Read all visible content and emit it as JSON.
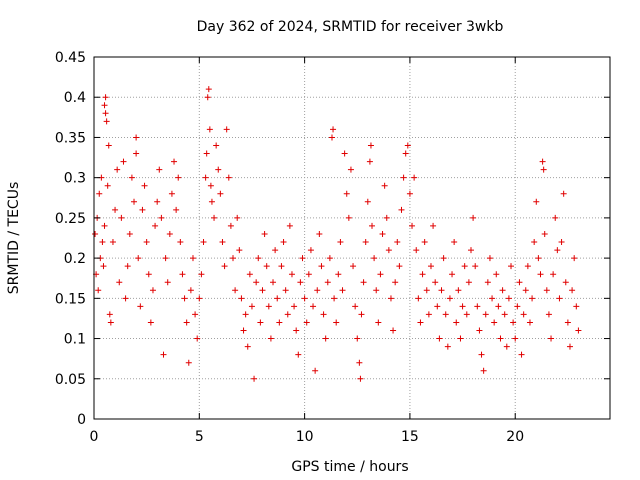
{
  "chart_data": {
    "type": "scatter",
    "title": "Day 362 of 2024, SRMTID for receiver 3wkb",
    "xlabel": "GPS time / hours",
    "ylabel": "SRMTID / TECUs",
    "xlim": [
      0,
      24.5
    ],
    "ylim": [
      0,
      0.45
    ],
    "x_ticks": [
      0,
      5,
      10,
      15,
      20
    ],
    "x_tick_labels": [
      "0",
      "5",
      "10",
      "15",
      "20"
    ],
    "y_ticks": [
      0,
      0.05,
      0.1,
      0.15,
      0.2,
      0.25,
      0.3,
      0.35,
      0.4,
      0.45
    ],
    "y_tick_labels": [
      "0",
      "0.05",
      "0.1",
      "0.15",
      "0.2",
      "0.25",
      "0.3",
      "0.35",
      "0.4",
      "0.45"
    ],
    "grid": true,
    "marker": "+",
    "colors": {
      "series": "#e00000",
      "grid": "#a0a0a0",
      "axis": "#000000"
    },
    "series": [
      {
        "name": "SRMTID",
        "points": [
          [
            0.05,
            0.23
          ],
          [
            0.1,
            0.18
          ],
          [
            0.15,
            0.25
          ],
          [
            0.2,
            0.16
          ],
          [
            0.25,
            0.28
          ],
          [
            0.3,
            0.2
          ],
          [
            0.35,
            0.3
          ],
          [
            0.4,
            0.22
          ],
          [
            0.45,
            0.19
          ],
          [
            0.5,
            0.24
          ],
          [
            0.5,
            0.39
          ],
          [
            0.55,
            0.38
          ],
          [
            0.6,
            0.37
          ],
          [
            0.55,
            0.4
          ],
          [
            0.65,
            0.29
          ],
          [
            0.7,
            0.34
          ],
          [
            0.75,
            0.13
          ],
          [
            0.8,
            0.12
          ],
          [
            0.9,
            0.22
          ],
          [
            1.0,
            0.26
          ],
          [
            1.1,
            0.31
          ],
          [
            1.2,
            0.17
          ],
          [
            1.3,
            0.25
          ],
          [
            1.4,
            0.32
          ],
          [
            1.5,
            0.15
          ],
          [
            1.6,
            0.19
          ],
          [
            1.7,
            0.23
          ],
          [
            1.8,
            0.3
          ],
          [
            1.9,
            0.27
          ],
          [
            2.0,
            0.35
          ],
          [
            2.0,
            0.33
          ],
          [
            2.1,
            0.2
          ],
          [
            2.2,
            0.14
          ],
          [
            2.3,
            0.26
          ],
          [
            2.4,
            0.29
          ],
          [
            2.5,
            0.22
          ],
          [
            2.6,
            0.18
          ],
          [
            2.7,
            0.12
          ],
          [
            2.8,
            0.16
          ],
          [
            2.9,
            0.24
          ],
          [
            3.0,
            0.27
          ],
          [
            3.1,
            0.31
          ],
          [
            3.2,
            0.25
          ],
          [
            3.3,
            0.08
          ],
          [
            3.4,
            0.2
          ],
          [
            3.5,
            0.17
          ],
          [
            3.6,
            0.23
          ],
          [
            3.7,
            0.28
          ],
          [
            3.8,
            0.32
          ],
          [
            3.9,
            0.26
          ],
          [
            4.0,
            0.3
          ],
          [
            4.1,
            0.22
          ],
          [
            4.2,
            0.18
          ],
          [
            4.3,
            0.15
          ],
          [
            4.4,
            0.12
          ],
          [
            4.5,
            0.07
          ],
          [
            4.6,
            0.16
          ],
          [
            4.7,
            0.2
          ],
          [
            4.8,
            0.13
          ],
          [
            4.9,
            0.1
          ],
          [
            5.0,
            0.15
          ],
          [
            5.1,
            0.18
          ],
          [
            5.2,
            0.22
          ],
          [
            5.3,
            0.3
          ],
          [
            5.35,
            0.33
          ],
          [
            5.4,
            0.4
          ],
          [
            5.45,
            0.41
          ],
          [
            5.5,
            0.36
          ],
          [
            5.55,
            0.29
          ],
          [
            5.6,
            0.27
          ],
          [
            5.7,
            0.25
          ],
          [
            5.8,
            0.34
          ],
          [
            5.9,
            0.31
          ],
          [
            6.0,
            0.28
          ],
          [
            6.1,
            0.22
          ],
          [
            6.2,
            0.19
          ],
          [
            6.3,
            0.36
          ],
          [
            6.4,
            0.3
          ],
          [
            6.5,
            0.24
          ],
          [
            6.6,
            0.2
          ],
          [
            6.7,
            0.16
          ],
          [
            6.8,
            0.25
          ],
          [
            6.9,
            0.21
          ],
          [
            7.0,
            0.15
          ],
          [
            7.1,
            0.11
          ],
          [
            7.2,
            0.13
          ],
          [
            7.3,
            0.09
          ],
          [
            7.4,
            0.18
          ],
          [
            7.5,
            0.14
          ],
          [
            7.6,
            0.05
          ],
          [
            7.7,
            0.17
          ],
          [
            7.8,
            0.2
          ],
          [
            7.9,
            0.12
          ],
          [
            8.0,
            0.16
          ],
          [
            8.1,
            0.23
          ],
          [
            8.2,
            0.19
          ],
          [
            8.3,
            0.14
          ],
          [
            8.4,
            0.1
          ],
          [
            8.5,
            0.17
          ],
          [
            8.6,
            0.21
          ],
          [
            8.7,
            0.15
          ],
          [
            8.8,
            0.12
          ],
          [
            8.9,
            0.19
          ],
          [
            9.0,
            0.22
          ],
          [
            9.1,
            0.16
          ],
          [
            9.2,
            0.13
          ],
          [
            9.3,
            0.24
          ],
          [
            9.4,
            0.18
          ],
          [
            9.5,
            0.14
          ],
          [
            9.6,
            0.11
          ],
          [
            9.7,
            0.08
          ],
          [
            9.8,
            0.17
          ],
          [
            9.9,
            0.2
          ],
          [
            10.0,
            0.15
          ],
          [
            10.1,
            0.12
          ],
          [
            10.2,
            0.18
          ],
          [
            10.3,
            0.21
          ],
          [
            10.4,
            0.14
          ],
          [
            10.5,
            0.06
          ],
          [
            10.6,
            0.16
          ],
          [
            10.7,
            0.23
          ],
          [
            10.8,
            0.19
          ],
          [
            10.9,
            0.13
          ],
          [
            11.0,
            0.1
          ],
          [
            11.1,
            0.17
          ],
          [
            11.2,
            0.2
          ],
          [
            11.3,
            0.35
          ],
          [
            11.35,
            0.36
          ],
          [
            11.4,
            0.15
          ],
          [
            11.5,
            0.12
          ],
          [
            11.6,
            0.18
          ],
          [
            11.7,
            0.22
          ],
          [
            11.8,
            0.16
          ],
          [
            11.9,
            0.33
          ],
          [
            12.0,
            0.28
          ],
          [
            12.1,
            0.25
          ],
          [
            12.2,
            0.31
          ],
          [
            12.3,
            0.19
          ],
          [
            12.4,
            0.14
          ],
          [
            12.5,
            0.1
          ],
          [
            12.6,
            0.07
          ],
          [
            12.65,
            0.05
          ],
          [
            12.7,
            0.13
          ],
          [
            12.8,
            0.17
          ],
          [
            12.9,
            0.22
          ],
          [
            13.0,
            0.27
          ],
          [
            13.1,
            0.32
          ],
          [
            13.15,
            0.34
          ],
          [
            13.2,
            0.24
          ],
          [
            13.3,
            0.2
          ],
          [
            13.4,
            0.16
          ],
          [
            13.5,
            0.12
          ],
          [
            13.6,
            0.18
          ],
          [
            13.7,
            0.23
          ],
          [
            13.8,
            0.29
          ],
          [
            13.9,
            0.25
          ],
          [
            14.0,
            0.21
          ],
          [
            14.1,
            0.15
          ],
          [
            14.2,
            0.11
          ],
          [
            14.3,
            0.17
          ],
          [
            14.4,
            0.22
          ],
          [
            14.5,
            0.19
          ],
          [
            14.6,
            0.26
          ],
          [
            14.7,
            0.3
          ],
          [
            14.8,
            0.33
          ],
          [
            14.9,
            0.34
          ],
          [
            15.0,
            0.28
          ],
          [
            15.1,
            0.24
          ],
          [
            15.2,
            0.3
          ],
          [
            15.3,
            0.21
          ],
          [
            15.4,
            0.15
          ],
          [
            15.5,
            0.12
          ],
          [
            15.6,
            0.18
          ],
          [
            15.7,
            0.22
          ],
          [
            15.8,
            0.16
          ],
          [
            15.9,
            0.13
          ],
          [
            16.0,
            0.19
          ],
          [
            16.1,
            0.24
          ],
          [
            16.2,
            0.17
          ],
          [
            16.3,
            0.14
          ],
          [
            16.4,
            0.1
          ],
          [
            16.5,
            0.16
          ],
          [
            16.6,
            0.2
          ],
          [
            16.7,
            0.13
          ],
          [
            16.8,
            0.09
          ],
          [
            16.9,
            0.15
          ],
          [
            17.0,
            0.18
          ],
          [
            17.1,
            0.22
          ],
          [
            17.2,
            0.12
          ],
          [
            17.3,
            0.16
          ],
          [
            17.4,
            0.1
          ],
          [
            17.5,
            0.14
          ],
          [
            17.6,
            0.19
          ],
          [
            17.7,
            0.13
          ],
          [
            17.8,
            0.17
          ],
          [
            17.9,
            0.21
          ],
          [
            18.0,
            0.25
          ],
          [
            18.1,
            0.19
          ],
          [
            18.2,
            0.14
          ],
          [
            18.3,
            0.11
          ],
          [
            18.4,
            0.08
          ],
          [
            18.5,
            0.06
          ],
          [
            18.6,
            0.13
          ],
          [
            18.7,
            0.17
          ],
          [
            18.8,
            0.2
          ],
          [
            18.9,
            0.15
          ],
          [
            19.0,
            0.12
          ],
          [
            19.1,
            0.18
          ],
          [
            19.2,
            0.14
          ],
          [
            19.3,
            0.1
          ],
          [
            19.4,
            0.16
          ],
          [
            19.5,
            0.13
          ],
          [
            19.6,
            0.09
          ],
          [
            19.7,
            0.15
          ],
          [
            19.8,
            0.19
          ],
          [
            19.9,
            0.12
          ],
          [
            20.0,
            0.1
          ],
          [
            20.1,
            0.14
          ],
          [
            20.2,
            0.17
          ],
          [
            20.3,
            0.08
          ],
          [
            20.4,
            0.13
          ],
          [
            20.5,
            0.16
          ],
          [
            20.6,
            0.19
          ],
          [
            20.7,
            0.12
          ],
          [
            20.8,
            0.15
          ],
          [
            20.9,
            0.22
          ],
          [
            21.0,
            0.27
          ],
          [
            21.1,
            0.2
          ],
          [
            21.2,
            0.18
          ],
          [
            21.3,
            0.32
          ],
          [
            21.35,
            0.31
          ],
          [
            21.4,
            0.23
          ],
          [
            21.5,
            0.16
          ],
          [
            21.6,
            0.13
          ],
          [
            21.7,
            0.1
          ],
          [
            21.8,
            0.18
          ],
          [
            21.9,
            0.25
          ],
          [
            22.0,
            0.21
          ],
          [
            22.1,
            0.15
          ],
          [
            22.2,
            0.22
          ],
          [
            22.3,
            0.28
          ],
          [
            22.4,
            0.17
          ],
          [
            22.5,
            0.12
          ],
          [
            22.6,
            0.09
          ],
          [
            22.7,
            0.16
          ],
          [
            22.8,
            0.2
          ],
          [
            22.9,
            0.14
          ],
          [
            23.0,
            0.11
          ]
        ]
      }
    ]
  }
}
